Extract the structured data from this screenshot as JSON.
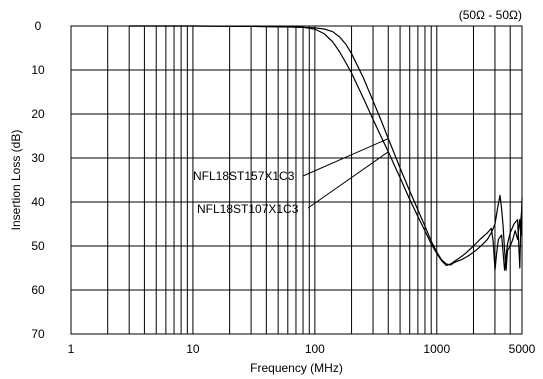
{
  "chart_data": {
    "type": "line",
    "title": "",
    "xlabel": "Frequency (MHz)",
    "ylabel": "Insertion Loss (dB)",
    "xscale": "log",
    "xlim": [
      1,
      5000
    ],
    "ylim": [
      0,
      70
    ],
    "y_inverted": true,
    "grid": true,
    "x_ticks": [
      {
        "value": 1,
        "label": "1"
      },
      {
        "value": 10,
        "label": "10"
      },
      {
        "value": 100,
        "label": "100"
      },
      {
        "value": 1000,
        "label": "1000"
      },
      {
        "value": 5000,
        "label": "5000"
      }
    ],
    "y_ticks": [
      {
        "value": 0,
        "label": "0"
      },
      {
        "value": 10,
        "label": "10"
      },
      {
        "value": 20,
        "label": "20"
      },
      {
        "value": 30,
        "label": "30"
      },
      {
        "value": 40,
        "label": "40"
      },
      {
        "value": 50,
        "label": "50"
      },
      {
        "value": 60,
        "label": "60"
      },
      {
        "value": 70,
        "label": "70"
      }
    ],
    "annotations": {
      "impedance": "(50Ω - 50Ω)"
    },
    "series": [
      {
        "name": "NFL18ST157X1C3",
        "color": "#000000",
        "points": [
          [
            3,
            0
          ],
          [
            10,
            0
          ],
          [
            30,
            0.1
          ],
          [
            60,
            0.2
          ],
          [
            80,
            0.3
          ],
          [
            100,
            0.4
          ],
          [
            120,
            0.7
          ],
          [
            140,
            1.3
          ],
          [
            160,
            2.5
          ],
          [
            180,
            4.2
          ],
          [
            200,
            6.3
          ],
          [
            250,
            11.8
          ],
          [
            300,
            17
          ],
          [
            350,
            21.5
          ],
          [
            400,
            25.6
          ],
          [
            450,
            29.1
          ],
          [
            500,
            32.3
          ],
          [
            600,
            37.5
          ],
          [
            700,
            41.8
          ],
          [
            800,
            45.5
          ],
          [
            900,
            48.9
          ],
          [
            1000,
            51.4
          ],
          [
            1100,
            53.2
          ],
          [
            1200,
            54.1
          ],
          [
            1300,
            54.3
          ],
          [
            1400,
            53.7
          ],
          [
            1600,
            53.1
          ],
          [
            1800,
            52.3
          ],
          [
            2000,
            51.4
          ],
          [
            2200,
            50.5
          ],
          [
            2400,
            49.5
          ],
          [
            2600,
            48.5
          ],
          [
            2800,
            47.0
          ],
          [
            3000,
            45.0
          ],
          [
            3150,
            41.5
          ],
          [
            3300,
            38.5
          ],
          [
            3400,
            41.5
          ],
          [
            3500,
            45.5
          ],
          [
            3600,
            51.0
          ],
          [
            3700,
            55.5
          ],
          [
            3800,
            51.0
          ],
          [
            4000,
            50.0
          ],
          [
            4200,
            48.5
          ],
          [
            4400,
            46.5
          ],
          [
            4600,
            48.5
          ],
          [
            4800,
            44.0
          ],
          [
            4900,
            47.5
          ],
          [
            5000,
            39.0
          ]
        ]
      },
      {
        "name": "NFL18ST107X1C3",
        "color": "#000000",
        "points": [
          [
            3,
            0
          ],
          [
            10,
            0
          ],
          [
            30,
            0.1
          ],
          [
            60,
            0.2
          ],
          [
            80,
            0.3
          ],
          [
            100,
            0.7
          ],
          [
            120,
            1.8
          ],
          [
            140,
            3.6
          ],
          [
            160,
            5.9
          ],
          [
            180,
            8.4
          ],
          [
            200,
            10.7
          ],
          [
            250,
            16.4
          ],
          [
            300,
            21.2
          ],
          [
            350,
            25.2
          ],
          [
            400,
            28.6
          ],
          [
            450,
            31.7
          ],
          [
            500,
            34.5
          ],
          [
            600,
            39.4
          ],
          [
            700,
            43.3
          ],
          [
            800,
            46.6
          ],
          [
            900,
            49.5
          ],
          [
            1000,
            51.7
          ],
          [
            1100,
            53.4
          ],
          [
            1200,
            54.4
          ],
          [
            1300,
            54.1
          ],
          [
            1500,
            52.9
          ],
          [
            1700,
            51.8
          ],
          [
            2000,
            50.0
          ],
          [
            2300,
            48.3
          ],
          [
            2600,
            47.0
          ],
          [
            2800,
            46.0
          ],
          [
            2900,
            49.0
          ],
          [
            3000,
            55.5
          ],
          [
            3100,
            51.5
          ],
          [
            3200,
            48.5
          ],
          [
            3400,
            47.5
          ],
          [
            3500,
            51.5
          ],
          [
            3600,
            55.5
          ],
          [
            3800,
            49.5
          ],
          [
            4000,
            47.0
          ],
          [
            4300,
            45.0
          ],
          [
            4600,
            44.0
          ],
          [
            4800,
            55.0
          ],
          [
            4900,
            44.0
          ],
          [
            5000,
            41.0
          ]
        ]
      }
    ]
  }
}
